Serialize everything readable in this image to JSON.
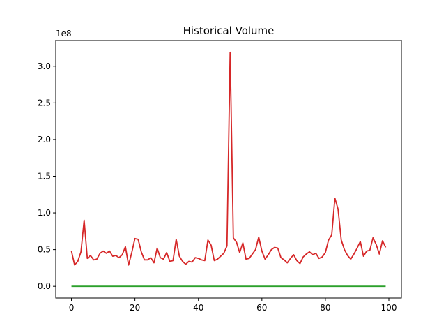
{
  "chart_data": {
    "type": "line",
    "title": "Historical Volume",
    "xlabel": "",
    "ylabel": "",
    "y_multiplier_label": "1e8",
    "xlim": [
      -4.95,
      103.95
    ],
    "ylim": [
      -0.16,
      3.35
    ],
    "x_ticks": [
      0,
      20,
      40,
      60,
      80,
      100
    ],
    "y_ticks": [
      0.0,
      0.5,
      1.0,
      1.5,
      2.0,
      2.5,
      3.0
    ],
    "y_tick_labels": [
      "0.0",
      "0.5",
      "1.0",
      "1.5",
      "2.0",
      "2.5",
      "3.0"
    ],
    "grid": false,
    "legend": "none",
    "series": [
      {
        "color": "#d62728",
        "x": [
          0,
          1,
          2,
          3,
          4,
          5,
          6,
          7,
          8,
          9,
          10,
          11,
          12,
          13,
          14,
          15,
          16,
          17,
          18,
          19,
          20,
          21,
          22,
          23,
          24,
          25,
          26,
          27,
          28,
          29,
          30,
          31,
          32,
          33,
          34,
          35,
          36,
          37,
          38,
          39,
          40,
          41,
          42,
          43,
          44,
          45,
          46,
          47,
          48,
          49,
          50,
          51,
          52,
          53,
          54,
          55,
          56,
          57,
          58,
          59,
          60,
          61,
          62,
          63,
          64,
          65,
          66,
          67,
          68,
          69,
          70,
          71,
          72,
          73,
          74,
          75,
          76,
          77,
          78,
          79,
          80,
          81,
          82,
          83,
          84,
          85,
          86,
          87,
          88,
          89,
          90,
          91,
          92,
          93,
          94,
          95,
          96,
          97,
          98,
          99
        ],
        "y": [
          0.48,
          0.29,
          0.34,
          0.47,
          0.9,
          0.38,
          0.42,
          0.36,
          0.37,
          0.45,
          0.48,
          0.45,
          0.48,
          0.41,
          0.42,
          0.39,
          0.43,
          0.54,
          0.29,
          0.46,
          0.65,
          0.64,
          0.47,
          0.36,
          0.36,
          0.39,
          0.32,
          0.52,
          0.39,
          0.37,
          0.46,
          0.34,
          0.35,
          0.64,
          0.41,
          0.34,
          0.3,
          0.34,
          0.33,
          0.39,
          0.38,
          0.36,
          0.35,
          0.63,
          0.56,
          0.35,
          0.37,
          0.41,
          0.45,
          0.55,
          3.19,
          0.66,
          0.6,
          0.46,
          0.59,
          0.37,
          0.38,
          0.44,
          0.5,
          0.67,
          0.48,
          0.37,
          0.43,
          0.5,
          0.53,
          0.52,
          0.39,
          0.36,
          0.32,
          0.38,
          0.43,
          0.35,
          0.31,
          0.4,
          0.44,
          0.47,
          0.43,
          0.45,
          0.38,
          0.4,
          0.46,
          0.63,
          0.7,
          1.2,
          1.05,
          0.63,
          0.5,
          0.42,
          0.37,
          0.44,
          0.52,
          0.61,
          0.41,
          0.48,
          0.49,
          0.66,
          0.57,
          0.44,
          0.62,
          0.53
        ]
      },
      {
        "color": "#2ca02c",
        "x": [
          0,
          99
        ],
        "y": [
          0.0,
          0.0
        ]
      }
    ]
  }
}
